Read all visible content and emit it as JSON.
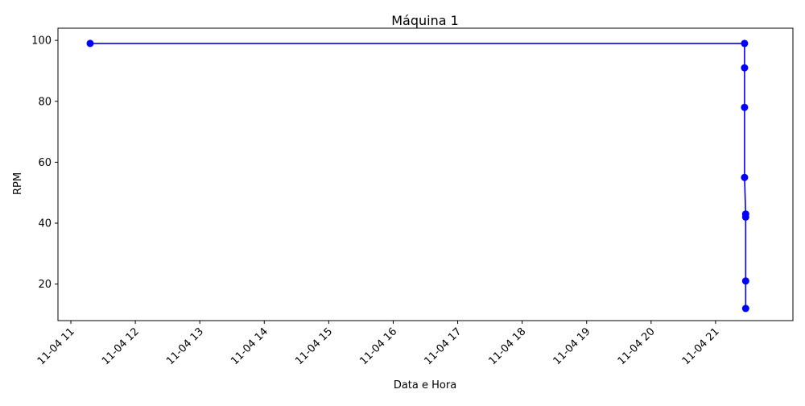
{
  "chart_data": {
    "type": "line",
    "title": "Máquina 1",
    "xlabel": "Data e Hora",
    "ylabel": "RPM",
    "x_ticks": [
      "11-04 11",
      "11-04 12",
      "11-04 13",
      "11-04 14",
      "11-04 15",
      "11-04 16",
      "11-04 17",
      "11-04 18",
      "11-04 19",
      "11-04 20",
      "11-04 21"
    ],
    "y_ticks": [
      20,
      40,
      60,
      80,
      100
    ],
    "ylim": [
      8,
      104
    ],
    "xlim": [
      "11-04 10:48",
      "11-04 22:12"
    ],
    "grid": false,
    "series": [
      {
        "color": "#0000ff",
        "marker": "circle",
        "x": [
          "11-04 11:18",
          "11-04 21:27",
          "11-04 21:27",
          "11-04 21:27",
          "11-04 21:27",
          "11-04 21:28",
          "11-04 21:28",
          "11-04 21:28",
          "11-04 21:28"
        ],
        "y": [
          99,
          99,
          91,
          78,
          55,
          43,
          42,
          21,
          12
        ]
      }
    ]
  }
}
